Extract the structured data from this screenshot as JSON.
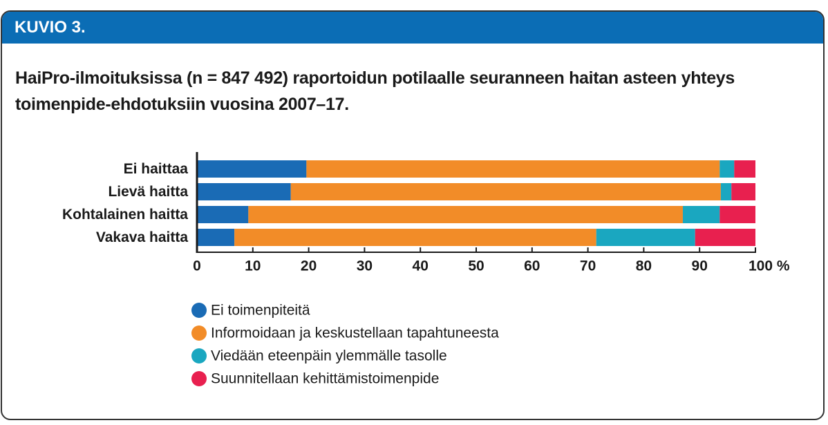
{
  "figure_label": "KUVIO 3.",
  "chart_data": {
    "type": "stacked_bar_horizontal",
    "title": "HaiPro-ilmoituksissa (n = 847 492) raportoidun potilaalle seuranneen haitan asteen yhteys toimenpide-ehdotuksiin vuosina 2007–17.",
    "categories": [
      "Ei haittaa",
      "Lievä haitta",
      "Kohtalainen haitta",
      "Vakava haitta"
    ],
    "series": [
      {
        "name": "Ei toimenpiteitä",
        "color": "#1a6bb5",
        "values": [
          19.6,
          16.8,
          9.2,
          6.7
        ]
      },
      {
        "name": "Informoidaan ja keskustellaan tapahtuneesta",
        "color": "#f28c28",
        "values": [
          74.0,
          77.0,
          77.8,
          64.8
        ]
      },
      {
        "name": "Viedään eteenpäin ylemmälle tasolle",
        "color": "#1aa7c0",
        "values": [
          2.6,
          1.9,
          6.6,
          17.7
        ]
      },
      {
        "name": "Suunnitellaan kehittämistoimenpide",
        "color": "#e8204f",
        "values": [
          3.8,
          4.3,
          6.4,
          10.8
        ]
      }
    ],
    "xlim": [
      0,
      100
    ],
    "xticks": [
      0,
      10,
      20,
      30,
      40,
      50,
      60,
      70,
      80,
      90,
      {
        "value": 100,
        "label": "100 %"
      }
    ]
  }
}
